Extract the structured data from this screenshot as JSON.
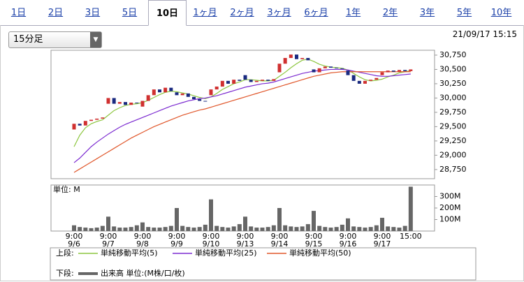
{
  "tabs": [
    {
      "label": "1日"
    },
    {
      "label": "2日"
    },
    {
      "label": "3日"
    },
    {
      "label": "5日"
    },
    {
      "label": "10日",
      "selected": true
    },
    {
      "label": "1ヶ月"
    },
    {
      "label": "2ヶ月"
    },
    {
      "label": "3ヶ月"
    },
    {
      "label": "6ヶ月"
    },
    {
      "label": "1年"
    },
    {
      "label": "2年"
    },
    {
      "label": "3年"
    },
    {
      "label": "5年"
    },
    {
      "label": "10年"
    }
  ],
  "interval": "15分足",
  "timestamp": "21/09/17 15:15",
  "chart_data": {
    "type": "candlestick",
    "up_color": "#d03030",
    "down_color": "#1a2a80",
    "categories": [
      "9:00",
      null,
      null,
      null,
      null,
      null,
      "9:00",
      null,
      null,
      null,
      null,
      null,
      "9:00",
      null,
      null,
      null,
      null,
      null,
      "9:00",
      null,
      null,
      null,
      null,
      null,
      "9:00",
      null,
      null,
      null,
      null,
      null,
      "9:00",
      null,
      null,
      null,
      null,
      null,
      "9:00",
      null,
      null,
      null,
      null,
      null,
      "9:00",
      null,
      null,
      null,
      null,
      null,
      "9:00",
      null,
      null,
      null,
      null,
      null,
      "9:00",
      null,
      null,
      null,
      null,
      "15:00"
    ],
    "dates": [
      "9/6",
      null,
      null,
      null,
      null,
      null,
      "9/7",
      null,
      null,
      null,
      null,
      null,
      "9/8",
      null,
      null,
      null,
      null,
      null,
      "9/9",
      null,
      null,
      null,
      null,
      null,
      "9/10",
      null,
      null,
      null,
      null,
      null,
      "9/13",
      null,
      null,
      null,
      null,
      null,
      "9/14",
      null,
      null,
      null,
      null,
      null,
      "9/15",
      null,
      null,
      null,
      null,
      null,
      "9/16",
      null,
      null,
      null,
      null,
      null,
      "9/17",
      null,
      null,
      null,
      null,
      null
    ],
    "open": [
      29450,
      29550,
      29520,
      29600,
      29620,
      29640,
      29900,
      30000,
      29900,
      29930,
      29880,
      29920,
      29850,
      29950,
      30050,
      30150,
      30100,
      30180,
      30100,
      30050,
      30080,
      30020,
      29980,
      29950,
      30050,
      30150,
      30200,
      30300,
      30250,
      30320,
      30400,
      30320,
      30280,
      30300,
      30320,
      30300,
      30450,
      30600,
      30700,
      30760,
      30680,
      30700,
      30500,
      30450,
      30520,
      30550,
      30530,
      30520,
      30480,
      30400,
      30300,
      30250,
      30300,
      30320,
      30400,
      30450,
      30480,
      30460,
      30490,
      30470
    ],
    "close": [
      29550,
      29520,
      29600,
      29620,
      29640,
      29660,
      30000,
      29900,
      29930,
      29880,
      29920,
      29910,
      29950,
      30050,
      30150,
      30100,
      30180,
      30120,
      30050,
      30080,
      30020,
      29980,
      29950,
      29940,
      30150,
      30200,
      30300,
      30250,
      30320,
      30300,
      30320,
      30280,
      30300,
      30320,
      30300,
      30330,
      30600,
      30700,
      30760,
      30680,
      30700,
      30660,
      30450,
      30520,
      30550,
      30530,
      30520,
      30510,
      30400,
      30300,
      30250,
      30300,
      30320,
      30350,
      30450,
      30480,
      30460,
      30490,
      30470,
      30500
    ],
    "series": [
      {
        "name": "単純移動平均(5)",
        "color": "#8cc63f",
        "values": [
          29150,
          29350,
          29480,
          29550,
          29590,
          29620,
          29700,
          29780,
          29830,
          29870,
          29890,
          29900,
          29920,
          29960,
          30010,
          30060,
          30100,
          30120,
          30110,
          30090,
          30070,
          30040,
          30010,
          29990,
          30020,
          30080,
          30150,
          30200,
          30250,
          30280,
          30320,
          30320,
          30310,
          30300,
          30300,
          30310,
          30380,
          30450,
          30530,
          30600,
          30660,
          30680,
          30640,
          30590,
          30560,
          30540,
          30530,
          30520,
          30490,
          30430,
          30370,
          30320,
          30300,
          30310,
          30330,
          30370,
          30400,
          30440,
          30460,
          30480
        ]
      },
      {
        "name": "単純移動平均(25)",
        "color": "#7b2ad0",
        "values": [
          28870,
          28950,
          29050,
          29150,
          29230,
          29300,
          29370,
          29430,
          29490,
          29540,
          29580,
          29620,
          29660,
          29700,
          29740,
          29780,
          29820,
          29860,
          29890,
          29920,
          29950,
          29970,
          29990,
          30000,
          30020,
          30040,
          30070,
          30100,
          30130,
          30160,
          30190,
          30210,
          30230,
          30250,
          30260,
          30280,
          30310,
          30340,
          30370,
          30400,
          30430,
          30450,
          30470,
          30480,
          30490,
          30500,
          30500,
          30500,
          30490,
          30470,
          30450,
          30430,
          30410,
          30390,
          30380,
          30380,
          30390,
          30400,
          30410,
          30420
        ]
      },
      {
        "name": "単純移動平均(50)",
        "color": "#e0562a",
        "values": [
          28700,
          28760,
          28820,
          28880,
          28940,
          29000,
          29060,
          29120,
          29180,
          29240,
          29300,
          29350,
          29400,
          29450,
          29500,
          29540,
          29580,
          29620,
          29660,
          29700,
          29730,
          29760,
          29790,
          29810,
          29840,
          29870,
          29900,
          29930,
          29960,
          29990,
          30020,
          30050,
          30080,
          30110,
          30140,
          30170,
          30200,
          30230,
          30260,
          30290,
          30320,
          30350,
          30380,
          30400,
          30420,
          30440,
          30450,
          30460,
          30460,
          30460,
          30460,
          30460,
          30460,
          30460,
          30460,
          30460,
          30460,
          30460,
          30460,
          30460
        ]
      }
    ],
    "ylim": [
      28590,
      30835
    ],
    "yticks": [
      {
        "value": 28750,
        "label": "28,750"
      },
      {
        "value": 29000,
        "label": "29,000"
      },
      {
        "value": 29250,
        "label": "29,250"
      },
      {
        "value": 29500,
        "label": "29,500"
      },
      {
        "value": 29750,
        "label": "29,750"
      },
      {
        "value": 30000,
        "label": "30,000"
      },
      {
        "value": 30250,
        "label": "30,250"
      },
      {
        "value": 30500,
        "label": "30,500"
      },
      {
        "value": 30750,
        "label": "30,750"
      }
    ],
    "volume": {
      "unit_label": "単位: M",
      "name": "出来高 単位:(M株/口/枚)",
      "color": "#666666",
      "ylim": [
        0,
        400
      ],
      "yticks": [
        {
          "value": 100,
          "label": "100M"
        },
        {
          "value": 200,
          "label": "200M"
        },
        {
          "value": 300,
          "label": "300M"
        }
      ],
      "values": [
        50,
        35,
        30,
        25,
        30,
        45,
        125,
        40,
        30,
        30,
        35,
        50,
        75,
        35,
        30,
        30,
        35,
        45,
        200,
        45,
        35,
        30,
        35,
        55,
        275,
        45,
        35,
        30,
        40,
        60,
        125,
        40,
        30,
        30,
        35,
        50,
        200,
        50,
        40,
        35,
        40,
        60,
        175,
        45,
        35,
        30,
        35,
        55,
        110,
        40,
        35,
        30,
        35,
        50,
        115,
        40,
        35,
        30,
        45,
        385
      ]
    },
    "upper_label": "上段:",
    "lower_label": "下段:"
  }
}
